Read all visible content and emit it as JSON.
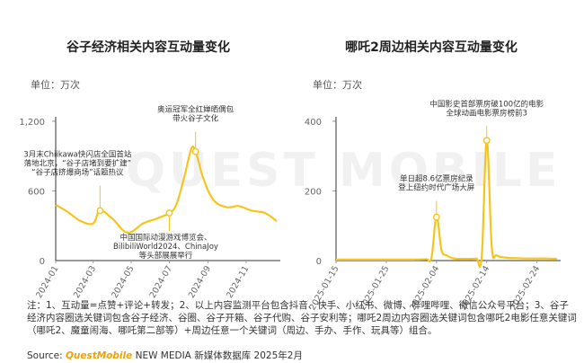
{
  "charts": [
    {
      "title": "谷子经济相关内容互动量变化",
      "unit": "单位：万次"
    },
    {
      "title": "哪吒2周边相关内容互动量变化",
      "unit": "单位：万次"
    }
  ],
  "chart_data": [
    {
      "type": "line",
      "title": "谷子经济相关内容互动量变化",
      "ylabel": "单位：万次",
      "ylim": [
        0,
        1200
      ],
      "yticks": [
        "0",
        "600",
        "1,200"
      ],
      "xticks": [
        "2024-01",
        "2024-03",
        "2024-05",
        "2024-07",
        "2024-09",
        "2024-11"
      ],
      "x": [
        "2024-01-01",
        "2024-01-20",
        "2024-02-10",
        "2024-03-01",
        "2024-03-12",
        "2024-04-01",
        "2024-04-25",
        "2024-05-20",
        "2024-06-10",
        "2024-07-01",
        "2024-07-12",
        "2024-07-25",
        "2024-08-05",
        "2024-08-12",
        "2024-08-25",
        "2024-09-10",
        "2024-10-01",
        "2024-10-20",
        "2024-11-10",
        "2024-12-01",
        "2024-12-20"
      ],
      "series": [
        {
          "values": [
            480,
            420,
            340,
            320,
            430,
            360,
            240,
            320,
            360,
            410,
            480,
            720,
            960,
            940,
            700,
            520,
            460,
            470,
            430,
            410,
            340
          ]
        }
      ],
      "color": "#f5c51e",
      "annotations": [
        {
          "x": "2024-03-12",
          "y": 430,
          "lines": [
            "3月末Chiikawa快闪店全国首站",
            "落地北京，“谷子店堵到要扩建”",
            "“谷子店挤爆商场”话题热议"
          ]
        },
        {
          "x": "2024-08-12",
          "y": 940,
          "lines": [
            "奥运冠军全红婵晒偶包",
            "带火谷子文化"
          ]
        },
        {
          "x": "2024-07-01",
          "y": 410,
          "lines": [
            "中国国际动漫游戏博览会、",
            "BilibiliWorld2024、ChinaJoy",
            "等头部展展举行"
          ]
        }
      ]
    },
    {
      "type": "line",
      "title": "哪吒2周边相关内容互动量变化",
      "ylabel": "单位：万次",
      "ylim": [
        0,
        400
      ],
      "yticks": [
        "0",
        "200",
        "400"
      ],
      "xticks": [
        "2025-01-15",
        "2025-01-25",
        "2025-02-04",
        "2025-02-14",
        "2025-02-24"
      ],
      "x": [
        "01-15",
        "01-17",
        "01-19",
        "01-21",
        "01-23",
        "01-25",
        "01-27",
        "01-29",
        "01-31",
        "02-02",
        "02-03",
        "02-04",
        "02-05",
        "02-06",
        "02-07",
        "02-08",
        "02-09",
        "02-10",
        "02-11",
        "02-12",
        "02-13",
        "02-14",
        "02-15",
        "02-16",
        "02-18",
        "02-20",
        "02-22",
        "02-24",
        "02-26",
        "02-28"
      ],
      "series": [
        {
          "values": [
            3,
            3,
            3,
            3,
            3,
            3,
            3,
            3,
            3,
            4,
            8,
            125,
            30,
            15,
            8,
            5,
            5,
            5,
            5,
            6,
            10,
            345,
            40,
            15,
            8,
            7,
            6,
            6,
            6,
            5
          ]
        }
      ],
      "color": "#f5c51e",
      "annotations": [
        {
          "x": "02-04",
          "y": 125,
          "lines": [
            "单日超8.6亿票房纪录",
            "登上纽约时代广场大屏"
          ]
        },
        {
          "x": "02-14",
          "y": 345,
          "lines": [
            "中国影史首部票房破100亿的电影",
            "全球动画电影票房榜前3"
          ]
        }
      ]
    }
  ],
  "notes": [
    "注：1、互动量=点赞+评论+转发；2、以上内容监测平台包含抖音、快手、小红书、微博、哔哩哔哩、微信公众号平台；3、谷子经济内容圈选关键词包含谷子经济、谷圈、谷子开箱、谷子代购、谷子安利等；哪吒2周边内容圈选关键词包含哪吒2电影任意关键词（哪吒2、魔童闹海、哪吒第二部等）+周边任意一个关键词（周边、手办、手作、玩具等）组合。"
  ],
  "source": {
    "label": "Source:",
    "brand": "QuestMobile",
    "text": "NEW MEDIA 新媒体数据库 2025年2月"
  },
  "watermark": "QUEST MOBILE"
}
